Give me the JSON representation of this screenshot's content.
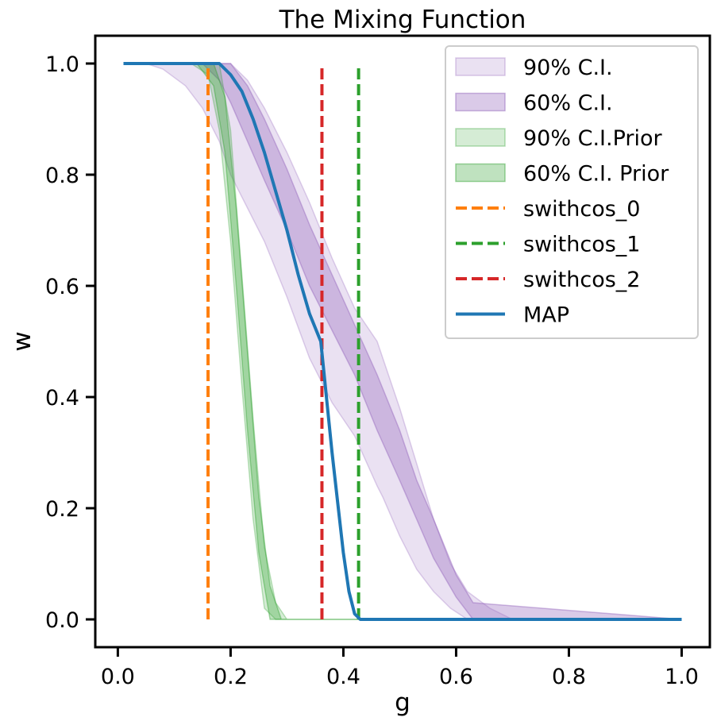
{
  "chart_data": {
    "type": "area",
    "title": "The Mixing Function",
    "xlabel": "g",
    "ylabel": "w",
    "xlim": [
      -0.04,
      1.05
    ],
    "ylim": [
      -0.05,
      1.05
    ],
    "xticks": [
      0.0,
      0.2,
      0.4,
      0.6,
      0.8,
      1.0
    ],
    "xtick_labels": [
      "0.0",
      "0.2",
      "0.4",
      "0.6",
      "0.8",
      "1.0"
    ],
    "yticks": [
      0.0,
      0.2,
      0.4,
      0.6,
      0.8,
      1.0
    ],
    "ytick_labels": [
      "0.0",
      "0.2",
      "0.4",
      "0.6",
      "0.8",
      "1.0"
    ],
    "grid": false,
    "legend_position": "top-right",
    "bands": [
      {
        "name": "90% C.I.",
        "color": "#9467bd",
        "opacity": 0.2,
        "x": [
          0.01,
          0.05,
          0.08,
          0.12,
          0.15,
          0.18,
          0.2,
          0.23,
          0.26,
          0.3,
          0.34,
          0.38,
          0.42,
          0.46,
          0.47,
          0.5,
          0.53,
          0.56,
          0.59,
          0.62,
          0.66,
          0.7,
          1.0
        ],
        "lower": [
          1.0,
          1.0,
          0.99,
          0.96,
          0.92,
          0.86,
          0.8,
          0.74,
          0.68,
          0.58,
          0.47,
          0.39,
          0.33,
          0.24,
          0.22,
          0.15,
          0.09,
          0.05,
          0.02,
          0.0,
          0.0,
          0.0,
          0.0
        ],
        "upper": [
          1.0,
          1.0,
          1.0,
          1.0,
          1.0,
          1.0,
          1.0,
          0.97,
          0.92,
          0.84,
          0.75,
          0.65,
          0.56,
          0.5,
          0.47,
          0.38,
          0.28,
          0.18,
          0.1,
          0.05,
          0.02,
          0.0,
          0.0
        ]
      },
      {
        "name": "60% C.I.",
        "color": "#9467bd",
        "opacity": 0.35,
        "x": [
          0.15,
          0.18,
          0.2,
          0.23,
          0.26,
          0.3,
          0.34,
          0.38,
          0.42,
          0.46,
          0.5,
          0.53,
          0.56,
          0.6,
          0.63,
          1.0
        ],
        "lower": [
          1.0,
          0.97,
          0.93,
          0.86,
          0.79,
          0.7,
          0.6,
          0.52,
          0.44,
          0.34,
          0.25,
          0.18,
          0.11,
          0.04,
          0.0,
          0.0
        ],
        "upper": [
          1.0,
          1.0,
          1.0,
          0.96,
          0.9,
          0.81,
          0.71,
          0.62,
          0.53,
          0.44,
          0.34,
          0.25,
          0.18,
          0.08,
          0.03,
          0.0
        ]
      },
      {
        "name": "90% C.I.Prior",
        "color": "#2ca02c",
        "opacity": 0.2,
        "x": [
          0.13,
          0.16,
          0.18,
          0.2,
          0.22,
          0.24,
          0.26,
          0.28,
          0.3,
          0.43
        ],
        "lower": [
          1.0,
          0.98,
          0.88,
          0.68,
          0.42,
          0.18,
          0.02,
          0.0,
          0.0,
          0.0
        ],
        "upper": [
          1.0,
          1.0,
          1.0,
          0.88,
          0.62,
          0.36,
          0.13,
          0.03,
          0.0,
          0.0
        ]
      },
      {
        "name": "60% C.I. Prior",
        "color": "#2ca02c",
        "opacity": 0.3,
        "x": [
          0.14,
          0.17,
          0.19,
          0.21,
          0.23,
          0.25,
          0.27,
          0.29,
          0.43
        ],
        "lower": [
          1.0,
          0.96,
          0.84,
          0.6,
          0.34,
          0.12,
          0.0,
          0.0,
          0.0
        ],
        "upper": [
          1.0,
          1.0,
          0.94,
          0.74,
          0.48,
          0.22,
          0.06,
          0.0,
          0.0
        ]
      }
    ],
    "vlines": [
      {
        "name": "swithcos_0",
        "x": 0.16,
        "color": "#ff7f0e",
        "ymin": 0.0,
        "ymax": 1.0
      },
      {
        "name": "swithcos_1",
        "x": 0.427,
        "color": "#2ca02c",
        "ymin": 0.0,
        "ymax": 1.0
      },
      {
        "name": "swithcos_2",
        "x": 0.362,
        "color": "#d62728",
        "ymin": 0.0,
        "ymax": 1.0
      }
    ],
    "series": [
      {
        "name": "MAP",
        "color": "#1f77b4",
        "x": [
          0.01,
          0.1,
          0.16,
          0.18,
          0.2,
          0.22,
          0.24,
          0.26,
          0.28,
          0.3,
          0.32,
          0.34,
          0.36,
          0.38,
          0.4,
          0.41,
          0.42,
          0.43,
          1.0
        ],
        "y": [
          1.0,
          1.0,
          1.0,
          1.0,
          0.98,
          0.95,
          0.9,
          0.84,
          0.77,
          0.7,
          0.62,
          0.55,
          0.5,
          0.3,
          0.12,
          0.05,
          0.01,
          0.0,
          0.0
        ]
      }
    ],
    "legend": [
      {
        "label": "90% C.I.",
        "kind": "patch",
        "color": "#9467bd",
        "opacity": 0.2
      },
      {
        "label": "60% C.I.",
        "kind": "patch",
        "color": "#9467bd",
        "opacity": 0.35
      },
      {
        "label": "90% C.I.Prior",
        "kind": "patch",
        "color": "#2ca02c",
        "opacity": 0.2
      },
      {
        "label": "60% C.I. Prior",
        "kind": "patch",
        "color": "#2ca02c",
        "opacity": 0.3
      },
      {
        "label": "swithcos_0",
        "kind": "dashed",
        "color": "#ff7f0e"
      },
      {
        "label": "swithcos_1",
        "kind": "dashed",
        "color": "#2ca02c"
      },
      {
        "label": "swithcos_2",
        "kind": "dashed",
        "color": "#d62728"
      },
      {
        "label": "MAP",
        "kind": "line",
        "color": "#1f77b4"
      }
    ]
  }
}
